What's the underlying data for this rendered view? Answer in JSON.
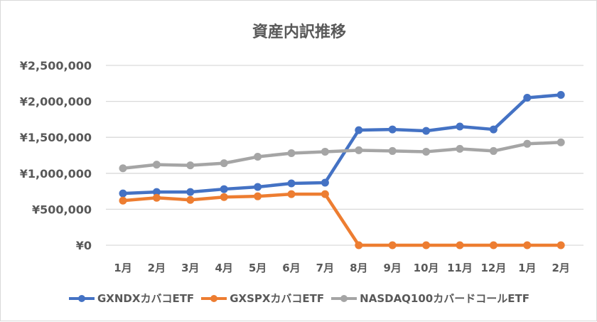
{
  "chart_data": {
    "type": "line",
    "title": "資産内訳推移",
    "xlabel": "",
    "ylabel": "",
    "categories": [
      "1月",
      "2月",
      "3月",
      "4月",
      "5月",
      "6月",
      "7月",
      "8月",
      "9月",
      "10月",
      "11月",
      "12月",
      "1月",
      "2月"
    ],
    "y_ticks": [
      "¥0",
      "¥500,000",
      "¥1,000,000",
      "¥1,500,000",
      "¥2,000,000",
      "¥2,500,000"
    ],
    "ylim": [
      0,
      2500000
    ],
    "grid": true,
    "legend_position": "bottom",
    "series": [
      {
        "name": "GXNDXカバコETF",
        "color": "#4472C4",
        "values": [
          720000,
          740000,
          740000,
          780000,
          810000,
          860000,
          870000,
          1600000,
          1610000,
          1590000,
          1650000,
          1610000,
          2050000,
          2090000
        ]
      },
      {
        "name": "GXSPXカバコETF",
        "color": "#ED7D31",
        "values": [
          620000,
          660000,
          630000,
          670000,
          680000,
          710000,
          710000,
          0,
          0,
          0,
          0,
          0,
          0,
          0
        ]
      },
      {
        "name": "NASDAQ100カバードコールETF",
        "color": "#A5A5A5",
        "values": [
          1070000,
          1120000,
          1110000,
          1140000,
          1230000,
          1280000,
          1300000,
          1320000,
          1310000,
          1300000,
          1340000,
          1310000,
          1410000,
          1430000
        ]
      }
    ]
  }
}
